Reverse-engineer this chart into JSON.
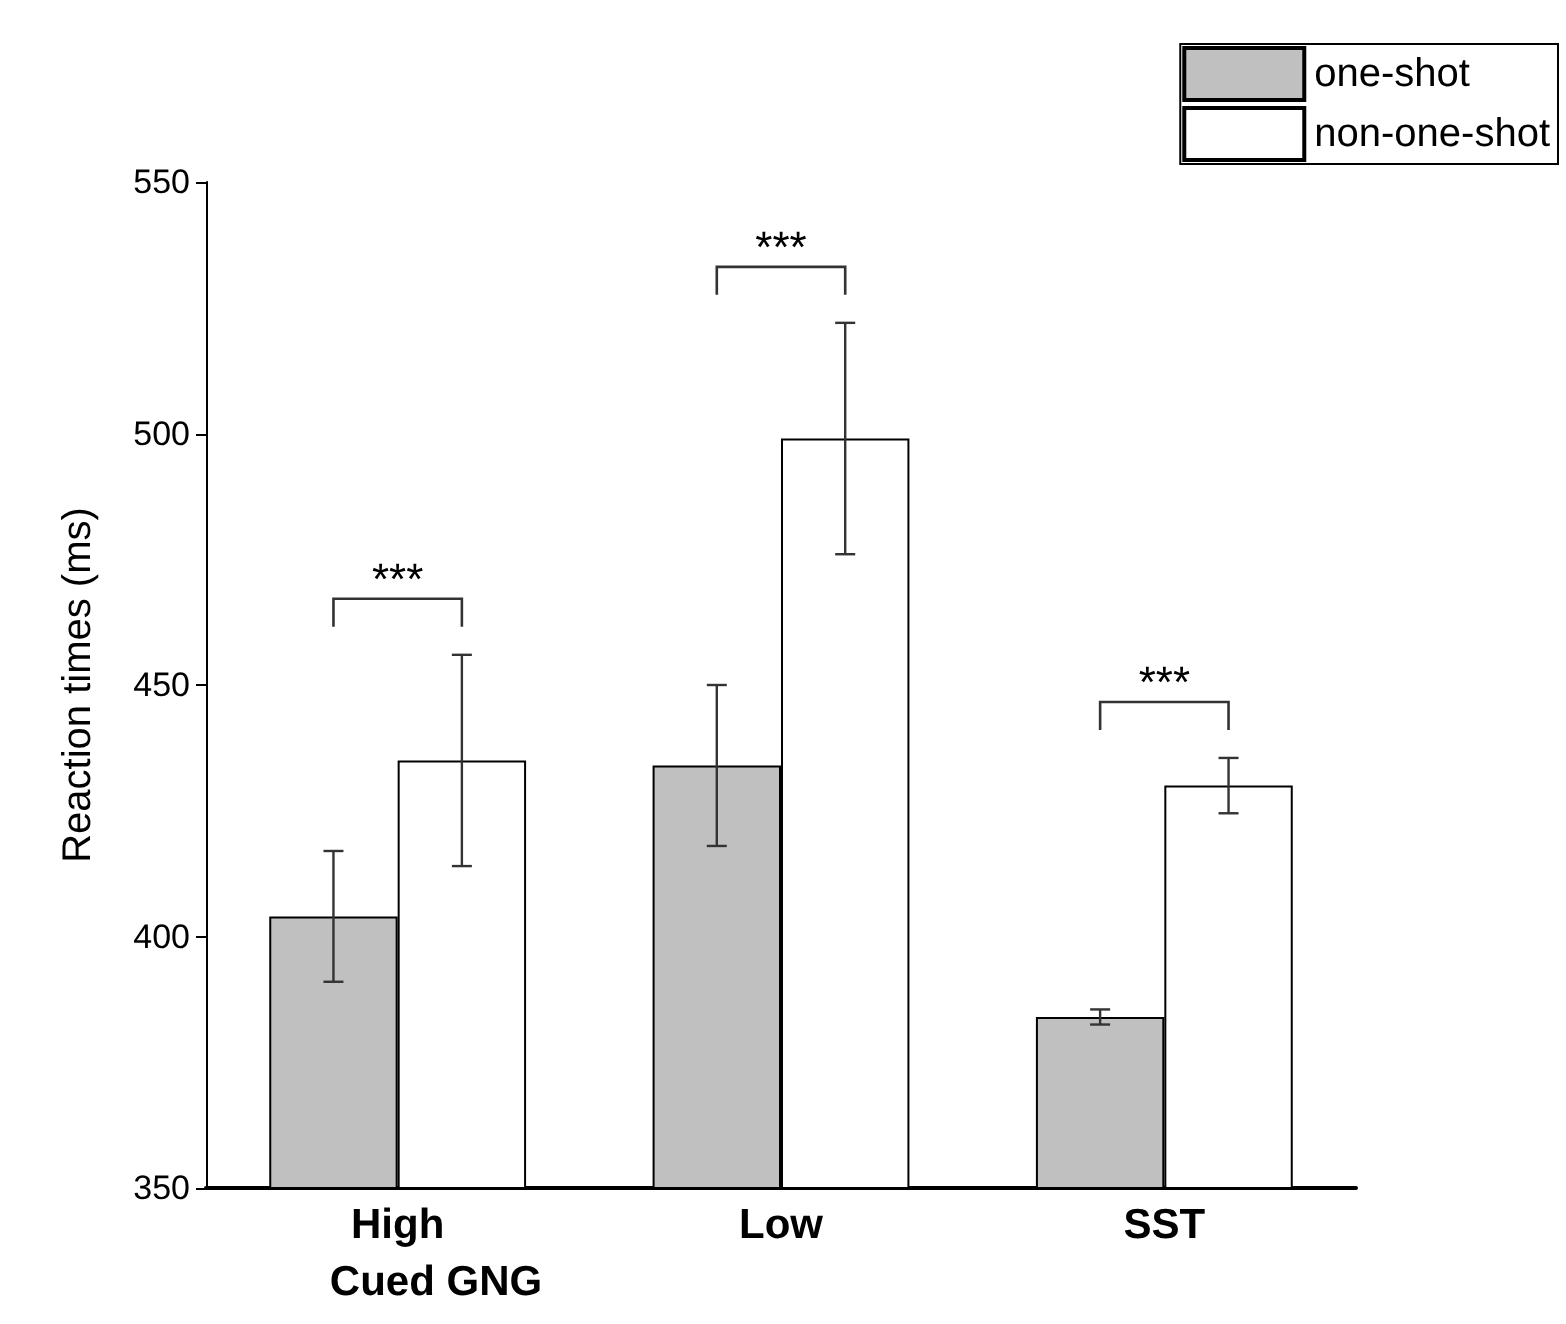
{
  "chart_data": {
    "type": "bar",
    "xlabel": "Cued GNG",
    "ylabel": "Reaction times (ms)",
    "categories": [
      "High",
      "Low",
      "SST"
    ],
    "series": [
      {
        "name": "one-shot",
        "color": "#c0c0c0",
        "values": [
          404,
          434,
          384
        ],
        "errors": [
          13,
          16,
          1.5
        ]
      },
      {
        "name": "non-one-shot",
        "color": "#ffffff",
        "values": [
          435,
          499,
          430
        ],
        "errors": [
          21,
          23,
          5.5
        ]
      }
    ],
    "ylim": [
      350,
      550
    ],
    "yticks": [
      350,
      400,
      450,
      500,
      550
    ],
    "grid": false,
    "legend": "top right",
    "annotations": [
      "***",
      "***",
      "***"
    ]
  }
}
